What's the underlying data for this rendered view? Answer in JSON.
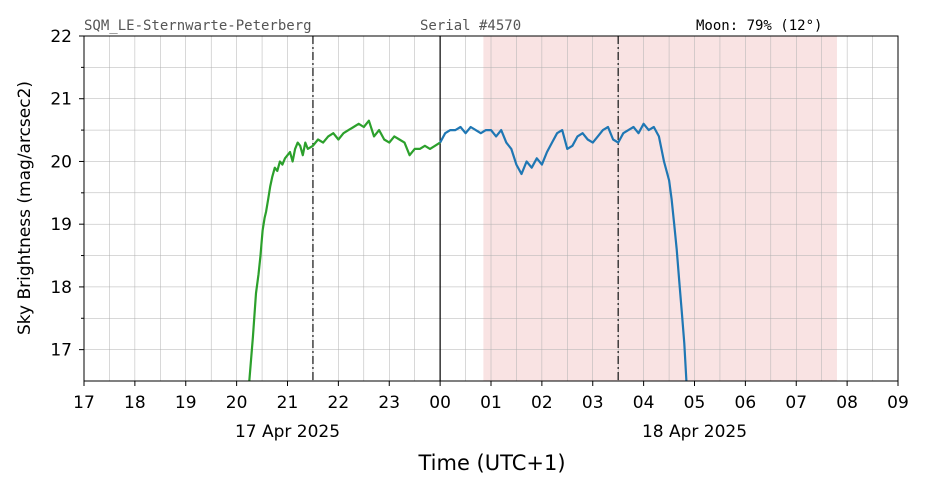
{
  "header": {
    "station": "SQM_LE-Sternwarte-Peterberg",
    "serial": "Serial #4570",
    "moon": "Moon: 79% (12°)"
  },
  "chart_data": {
    "type": "line",
    "title": "",
    "xlabel": "Time (UTC+1)",
    "ylabel": "Sky Brightness (mag/arcsec2)",
    "ylim": [
      16.5,
      22
    ],
    "yticks": [
      17,
      18,
      19,
      20,
      21,
      22
    ],
    "x_units": "hours since 17 Apr 2025 00:00 (UTC+1)",
    "xlim": [
      17,
      33
    ],
    "xtick_labels": [
      "17",
      "18",
      "19",
      "20",
      "21",
      "22",
      "23",
      "00",
      "01",
      "02",
      "03",
      "04",
      "05",
      "06",
      "07",
      "08",
      "09"
    ],
    "date_labels": [
      {
        "x": 21,
        "text": "17 Apr 2025"
      },
      {
        "x": 29,
        "text": "18 Apr 2025"
      }
    ],
    "grid": true,
    "midnight_x": 24,
    "vlines_dashdot": [
      21.5,
      27.5
    ],
    "moon_span": [
      24.85,
      31.8
    ],
    "colors": {
      "series_before_midnight": "#2ca02c",
      "series_after_midnight": "#1f77b4",
      "moon_span": "#f9e3e3",
      "grid": "#b0b0b0",
      "axis": "#000000"
    },
    "series": [
      {
        "color": "#2ca02c",
        "points": [
          [
            20.25,
            16.5
          ],
          [
            20.32,
            17.2
          ],
          [
            20.38,
            17.9
          ],
          [
            20.43,
            18.2
          ],
          [
            20.47,
            18.5
          ],
          [
            20.51,
            18.9
          ],
          [
            20.55,
            19.1
          ],
          [
            20.58,
            19.2
          ],
          [
            20.62,
            19.4
          ],
          [
            20.66,
            19.6
          ],
          [
            20.7,
            19.75
          ],
          [
            20.75,
            19.9
          ],
          [
            20.8,
            19.85
          ],
          [
            20.85,
            20.0
          ],
          [
            20.9,
            19.95
          ],
          [
            20.95,
            20.05
          ],
          [
            21.0,
            20.1
          ],
          [
            21.05,
            20.15
          ],
          [
            21.1,
            20.0
          ],
          [
            21.15,
            20.2
          ],
          [
            21.2,
            20.3
          ],
          [
            21.25,
            20.25
          ],
          [
            21.3,
            20.1
          ],
          [
            21.35,
            20.3
          ],
          [
            21.4,
            20.2
          ],
          [
            21.5,
            20.25
          ],
          [
            21.6,
            20.35
          ],
          [
            21.7,
            20.3
          ],
          [
            21.8,
            20.4
          ],
          [
            21.9,
            20.45
          ],
          [
            22.0,
            20.35
          ],
          [
            22.1,
            20.45
          ],
          [
            22.2,
            20.5
          ],
          [
            22.3,
            20.55
          ],
          [
            22.4,
            20.6
          ],
          [
            22.5,
            20.55
          ],
          [
            22.6,
            20.65
          ],
          [
            22.7,
            20.4
          ],
          [
            22.8,
            20.5
          ],
          [
            22.9,
            20.35
          ],
          [
            23.0,
            20.3
          ],
          [
            23.1,
            20.4
          ],
          [
            23.2,
            20.35
          ],
          [
            23.3,
            20.3
          ],
          [
            23.4,
            20.1
          ],
          [
            23.5,
            20.2
          ],
          [
            23.6,
            20.2
          ],
          [
            23.7,
            20.25
          ],
          [
            23.8,
            20.2
          ],
          [
            23.9,
            20.25
          ],
          [
            24.0,
            20.3
          ]
        ]
      },
      {
        "color": "#1f77b4",
        "points": [
          [
            24.0,
            20.3
          ],
          [
            24.1,
            20.45
          ],
          [
            24.2,
            20.5
          ],
          [
            24.3,
            20.5
          ],
          [
            24.4,
            20.55
          ],
          [
            24.5,
            20.45
          ],
          [
            24.6,
            20.55
          ],
          [
            24.7,
            20.5
          ],
          [
            24.8,
            20.45
          ],
          [
            24.9,
            20.5
          ],
          [
            25.0,
            20.5
          ],
          [
            25.1,
            20.4
          ],
          [
            25.2,
            20.5
          ],
          [
            25.3,
            20.3
          ],
          [
            25.4,
            20.2
          ],
          [
            25.5,
            19.95
          ],
          [
            25.6,
            19.8
          ],
          [
            25.7,
            20.0
          ],
          [
            25.8,
            19.9
          ],
          [
            25.9,
            20.05
          ],
          [
            26.0,
            19.95
          ],
          [
            26.1,
            20.15
          ],
          [
            26.2,
            20.3
          ],
          [
            26.3,
            20.45
          ],
          [
            26.4,
            20.5
          ],
          [
            26.5,
            20.2
          ],
          [
            26.6,
            20.25
          ],
          [
            26.7,
            20.4
          ],
          [
            26.8,
            20.45
          ],
          [
            26.9,
            20.35
          ],
          [
            27.0,
            20.3
          ],
          [
            27.1,
            20.4
          ],
          [
            27.2,
            20.5
          ],
          [
            27.3,
            20.55
          ],
          [
            27.4,
            20.35
          ],
          [
            27.5,
            20.3
          ],
          [
            27.6,
            20.45
          ],
          [
            27.7,
            20.5
          ],
          [
            27.8,
            20.55
          ],
          [
            27.9,
            20.45
          ],
          [
            28.0,
            20.6
          ],
          [
            28.1,
            20.5
          ],
          [
            28.2,
            20.55
          ],
          [
            28.3,
            20.4
          ],
          [
            28.4,
            20.0
          ],
          [
            28.5,
            19.7
          ],
          [
            28.55,
            19.4
          ],
          [
            28.6,
            19.0
          ],
          [
            28.65,
            18.6
          ],
          [
            28.7,
            18.1
          ],
          [
            28.75,
            17.6
          ],
          [
            28.8,
            17.1
          ],
          [
            28.84,
            16.5
          ]
        ]
      }
    ]
  }
}
